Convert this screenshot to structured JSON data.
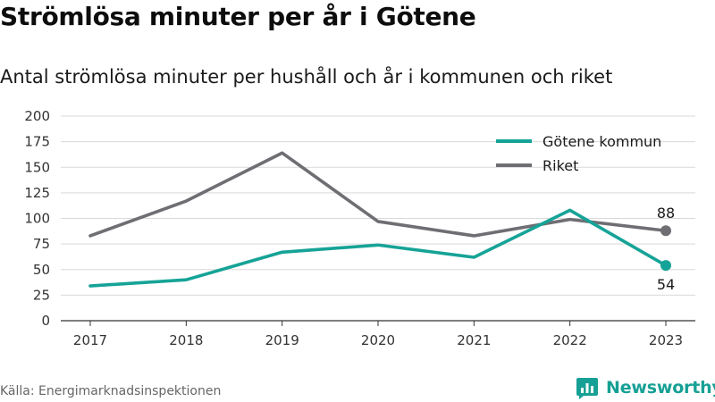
{
  "header": {
    "title": "Strömlösa minuter per år i Götene",
    "subtitle": "Antal strömlösa minuter per hushåll och år i kommunen och riket"
  },
  "footer": {
    "source": "Källa: Energimarknadsinspektionen",
    "brand": "Newsworthy",
    "brand_icon": "bar-chart-icon",
    "brand_color": "#17a095"
  },
  "chart_data": {
    "type": "line",
    "title": "",
    "xlabel": "",
    "ylabel": "",
    "categories": [
      "2017",
      "2018",
      "2019",
      "2020",
      "2021",
      "2022",
      "2023"
    ],
    "yticks": [
      "0",
      "25",
      "50",
      "75",
      "100",
      "125",
      "150",
      "175",
      "200"
    ],
    "ylim": [
      0,
      200
    ],
    "grid": true,
    "legend_position": "top-right",
    "series": [
      {
        "name": "Götene kommun",
        "color": "#16a397",
        "values": [
          34,
          40,
          67,
          74,
          62,
          108,
          54
        ],
        "end_label": "54"
      },
      {
        "name": "Riket",
        "color": "#6e6e73",
        "values": [
          83,
          117,
          164,
          97,
          83,
          99,
          88
        ],
        "end_label": "88"
      }
    ]
  }
}
